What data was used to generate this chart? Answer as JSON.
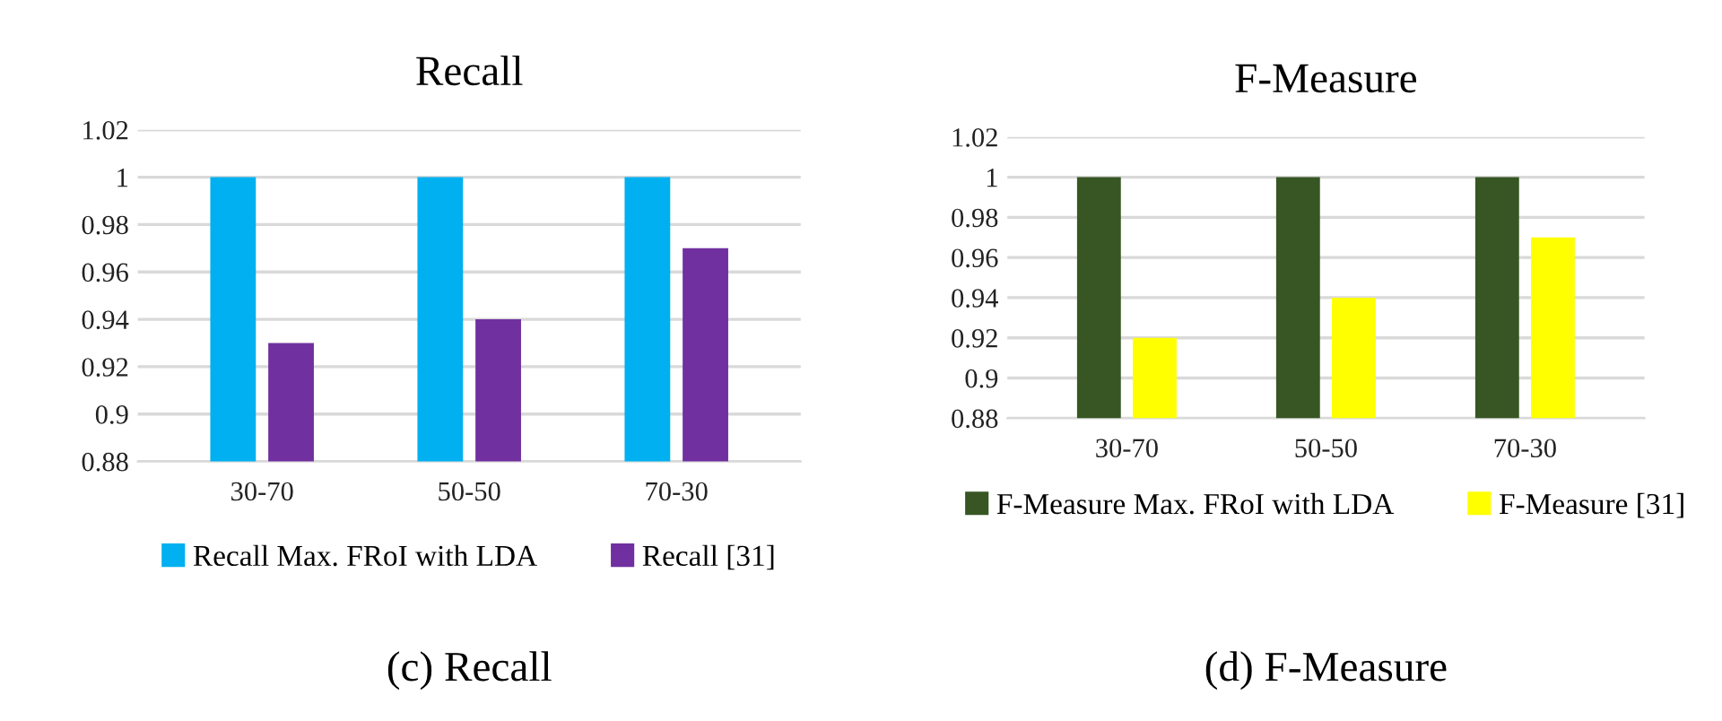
{
  "chart_data": [
    {
      "type": "bar",
      "title": "Recall",
      "categories": [
        "30-70",
        "50-50",
        "70-30"
      ],
      "series": [
        {
          "name": "Recall Max. FRoI with LDA",
          "color": "#00b0f0",
          "values": [
            1,
            1,
            1
          ]
        },
        {
          "name": "Recall [31]",
          "color": "#7030a0",
          "values": [
            0.93,
            0.94,
            0.97
          ]
        }
      ],
      "ylim": [
        0.88,
        1.02
      ],
      "yticks": [
        0.88,
        0.9,
        0.92,
        0.94,
        0.96,
        0.98,
        1,
        1.02
      ],
      "grid": "y",
      "legend": "bottom",
      "annotations": [
        "(c) Recall"
      ]
    },
    {
      "type": "bar",
      "title": "F-Measure",
      "categories": [
        "30-70",
        "50-50",
        "70-30"
      ],
      "series": [
        {
          "name": "F-Measure Max. FRoI with LDA",
          "color": "#375623",
          "values": [
            1,
            1,
            1
          ]
        },
        {
          "name": "F-Measure [31]",
          "color": "#ffff00",
          "values": [
            0.92,
            0.94,
            0.97
          ]
        }
      ],
      "ylim": [
        0.88,
        1.02
      ],
      "yticks": [
        0.88,
        0.9,
        0.92,
        0.94,
        0.96,
        0.98,
        1,
        1.02
      ],
      "grid": "y",
      "legend": "bottom",
      "annotations": [
        "(d) F-Measure"
      ]
    }
  ]
}
